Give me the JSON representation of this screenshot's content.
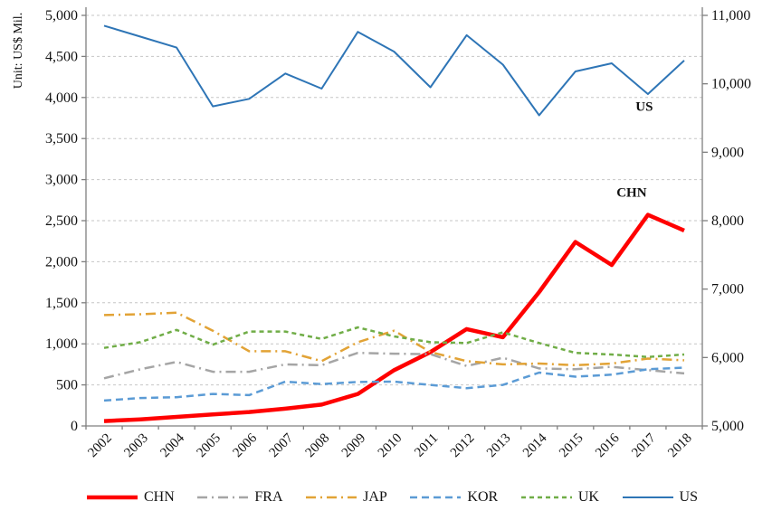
{
  "chart_data": {
    "type": "line",
    "unit_label": "Unit: US$ Mil.",
    "x": {
      "categories": [
        "2002",
        "2003",
        "2004",
        "2005",
        "2006",
        "2007",
        "2008",
        "2009",
        "2010",
        "2011",
        "2012",
        "2013",
        "2014",
        "2015",
        "2016",
        "2017",
        "2018"
      ]
    },
    "axes": {
      "left": {
        "min": 0,
        "max": 5000,
        "step": 500,
        "tick_labels": [
          "0",
          "500",
          "1,000",
          "1,500",
          "2,000",
          "2,500",
          "3,000",
          "3,500",
          "4,000",
          "4,500",
          "5,000"
        ]
      },
      "right": {
        "min": 5000,
        "max": 11000,
        "step": 1000,
        "tick_labels": [
          "5,000",
          "6,000",
          "7,000",
          "8,000",
          "9,000",
          "10,000",
          "11,000"
        ]
      }
    },
    "grid": {
      "show": true,
      "color": "#c6c6c6",
      "axis_color": "#7f7f7f"
    },
    "series": [
      {
        "name": "CHN",
        "axis": "left",
        "color": "#ff0000",
        "dash": "",
        "width": 4.5,
        "values": [
          60,
          80,
          110,
          140,
          170,
          210,
          260,
          390,
          680,
          900,
          1180,
          1080,
          1630,
          2240,
          1960,
          2570,
          2380
        ]
      },
      {
        "name": "FRA",
        "axis": "left",
        "color": "#a5a5a5",
        "dash": "11 5 2 5",
        "width": 2.5,
        "values": [
          580,
          690,
          780,
          660,
          660,
          750,
          740,
          890,
          880,
          875,
          730,
          830,
          700,
          690,
          720,
          680,
          640
        ]
      },
      {
        "name": "JAP",
        "axis": "left",
        "color": "#e2a336",
        "dash": "11 5 2 5",
        "width": 2.5,
        "values": [
          1350,
          1360,
          1380,
          1160,
          910,
          910,
          790,
          1020,
          1160,
          900,
          790,
          750,
          760,
          740,
          760,
          820,
          800
        ]
      },
      {
        "name": "KOR",
        "axis": "left",
        "color": "#5b9bd5",
        "dash": "8 5",
        "width": 2.5,
        "values": [
          310,
          340,
          350,
          390,
          375,
          540,
          510,
          535,
          540,
          500,
          460,
          500,
          650,
          600,
          625,
          690,
          710
        ]
      },
      {
        "name": "UK",
        "axis": "left",
        "color": "#70ad47",
        "dash": "5 4",
        "width": 2.5,
        "values": [
          950,
          1020,
          1170,
          990,
          1150,
          1150,
          1060,
          1200,
          1090,
          1020,
          1010,
          1140,
          1010,
          890,
          870,
          840,
          870
        ]
      },
      {
        "name": "US",
        "axis": "right",
        "color": "#2e75b6",
        "dash": "",
        "width": 2,
        "values": [
          10850,
          10690,
          10530,
          9670,
          9780,
          10150,
          9930,
          10760,
          10470,
          9950,
          10710,
          10280,
          9540,
          10180,
          10300,
          9850,
          10340
        ]
      }
    ],
    "annotations": [
      {
        "label": "US",
        "year_index": 14.9,
        "value_left": 3840
      },
      {
        "label": "CHN",
        "year_index": 14.55,
        "value_left": 2790
      }
    ],
    "legend": {
      "position": "bottom",
      "items": [
        "CHN",
        "FRA",
        "JAP",
        "KOR",
        "UK",
        "US"
      ]
    }
  }
}
